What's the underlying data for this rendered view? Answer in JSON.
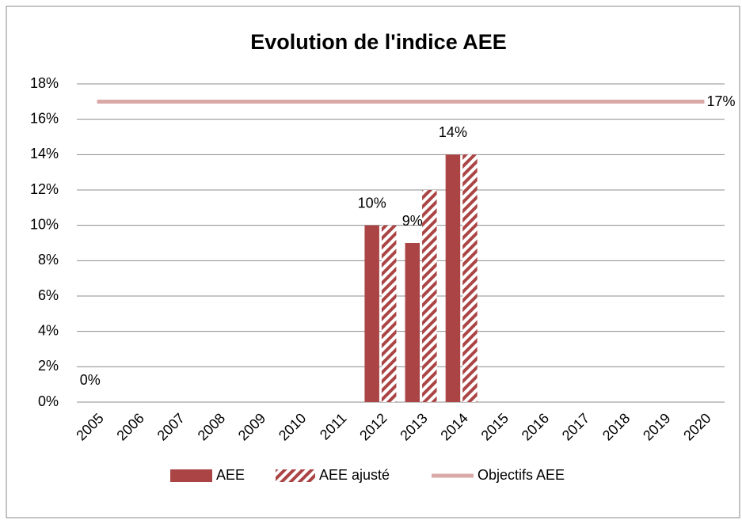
{
  "chart_data": {
    "type": "bar",
    "title": "Evolution de l'indice AEE",
    "categories": [
      "2005",
      "2006",
      "2007",
      "2008",
      "2009",
      "2010",
      "2011",
      "2012",
      "2013",
      "2014",
      "2015",
      "2016",
      "2017",
      "2018",
      "2019",
      "2020"
    ],
    "series": [
      {
        "name": "AEE",
        "type": "bar",
        "color": "#ab4545",
        "pattern": "solid",
        "values": [
          0,
          null,
          null,
          null,
          null,
          null,
          null,
          10,
          9,
          14,
          null,
          null,
          null,
          null,
          null,
          null
        ],
        "value_labels": [
          "0%",
          null,
          null,
          null,
          null,
          null,
          null,
          "10%",
          "9%",
          "14%",
          null,
          null,
          null,
          null,
          null,
          null
        ]
      },
      {
        "name": "AEE ajusté",
        "type": "bar",
        "color": "#ab4545",
        "pattern": "hatch",
        "values": [
          null,
          null,
          null,
          null,
          null,
          null,
          null,
          10,
          12,
          14,
          null,
          null,
          null,
          null,
          null,
          null
        ]
      },
      {
        "name": "Objectifs AEE",
        "type": "line",
        "color": "#d9a9a8",
        "values": [
          17,
          17,
          17,
          17,
          17,
          17,
          17,
          17,
          17,
          17,
          17,
          17,
          17,
          17,
          17,
          17
        ],
        "value_labels": [
          null,
          null,
          null,
          null,
          null,
          null,
          null,
          null,
          null,
          null,
          null,
          null,
          null,
          null,
          null,
          "17%"
        ]
      }
    ],
    "ylim": [
      0,
      18
    ],
    "yticks": [
      {
        "value": 0,
        "label": "0%"
      },
      {
        "value": 2,
        "label": "2%"
      },
      {
        "value": 4,
        "label": "4%"
      },
      {
        "value": 6,
        "label": "6%"
      },
      {
        "value": 8,
        "label": "8%"
      },
      {
        "value": 10,
        "label": "10%"
      },
      {
        "value": 12,
        "label": "12%"
      },
      {
        "value": 14,
        "label": "14%"
      },
      {
        "value": 16,
        "label": "16%"
      },
      {
        "value": 18,
        "label": "18%"
      }
    ],
    "grid": true,
    "legend": "bottom"
  }
}
